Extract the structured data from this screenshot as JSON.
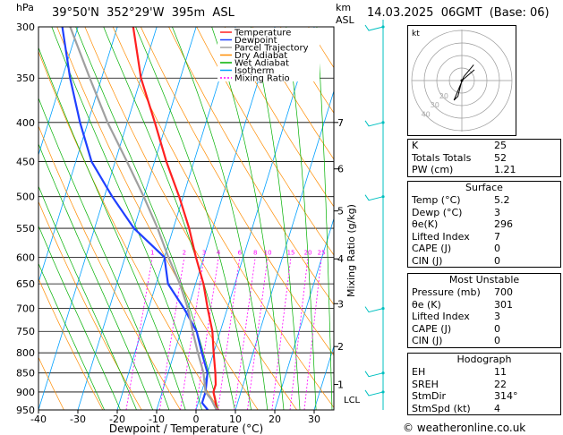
{
  "header": {
    "hpa_label": "hPa",
    "location": "39°50'N  352°29'W  395m  ASL",
    "km_label": "km",
    "asl_label": "ASL",
    "datetime": "14.03.2025  06GMT  (Base: 06)"
  },
  "legend": [
    {
      "label": "Temperature",
      "color": "#ff2020",
      "dash": ""
    },
    {
      "label": "Dewpoint",
      "color": "#2040ff",
      "dash": ""
    },
    {
      "label": "Parcel Trajectory",
      "color": "#a0a0a0",
      "dash": ""
    },
    {
      "label": "Dry Adiabat",
      "color": "#ff8c00",
      "dash": ""
    },
    {
      "label": "Wet Adiabat",
      "color": "#00b000",
      "dash": ""
    },
    {
      "label": "Isotherm",
      "color": "#00a0ff",
      "dash": ""
    },
    {
      "label": "Mixing Ratio",
      "color": "#ff00ff",
      "dash": "2,2"
    }
  ],
  "axes": {
    "xlabel": "Dewpoint / Temperature (°C)",
    "ylabel_right": "Mixing Ratio (g/kg)",
    "lcl_label": "LCL",
    "xticks": [
      "-40",
      "-30",
      "-20",
      "-10",
      "0",
      "10",
      "20",
      "30"
    ],
    "pressure_ticks": [
      "300",
      "350",
      "400",
      "450",
      "500",
      "550",
      "600",
      "650",
      "700",
      "750",
      "800",
      "850",
      "900",
      "950"
    ],
    "km_ticks": [
      {
        "label": "7",
        "p": 400
      },
      {
        "label": "6",
        "p": 460
      },
      {
        "label": "5",
        "p": 522
      },
      {
        "label": "4",
        "p": 603
      },
      {
        "label": "3",
        "p": 690
      },
      {
        "label": "2",
        "p": 785
      },
      {
        "label": "1",
        "p": 880
      }
    ],
    "mixing_ratio_labels": [
      "1",
      "2",
      "3",
      "4",
      "6",
      "8",
      "10",
      "15",
      "20",
      "25"
    ]
  },
  "chart_data": {
    "type": "line",
    "title": "",
    "xlim": [
      -40,
      35
    ],
    "plim": [
      300,
      950
    ],
    "skew_c_per_decade": 60,
    "series": [
      {
        "name": "Temperature",
        "color": "#ff2020",
        "points": [
          [
            5.2,
            950
          ],
          [
            4,
            920
          ],
          [
            3,
            900
          ],
          [
            3,
            880
          ],
          [
            2,
            850
          ],
          [
            0,
            800
          ],
          [
            -2,
            750
          ],
          [
            -5,
            700
          ],
          [
            -8,
            650
          ],
          [
            -12,
            600
          ],
          [
            -16,
            550
          ],
          [
            -21,
            500
          ],
          [
            -27,
            450
          ],
          [
            -33,
            400
          ],
          [
            -40,
            350
          ],
          [
            -46,
            300
          ]
        ]
      },
      {
        "name": "Dewpoint",
        "color": "#2040ff",
        "points": [
          [
            3,
            950
          ],
          [
            1,
            930
          ],
          [
            1,
            900
          ],
          [
            0,
            850
          ],
          [
            -3,
            800
          ],
          [
            -6,
            750
          ],
          [
            -11,
            700
          ],
          [
            -17,
            650
          ],
          [
            -20,
            600
          ],
          [
            -30,
            550
          ],
          [
            -38,
            500
          ],
          [
            -46,
            450
          ],
          [
            -52,
            400
          ],
          [
            -58,
            350
          ],
          [
            -64,
            300
          ]
        ]
      },
      {
        "name": "Parcel Trajectory",
        "color": "#a0a0a0",
        "points": [
          [
            5.2,
            950
          ],
          [
            3,
            920
          ],
          [
            1,
            900
          ],
          [
            -1,
            850
          ],
          [
            -4,
            800
          ],
          [
            -7,
            750
          ],
          [
            -10,
            700
          ],
          [
            -14,
            650
          ],
          [
            -19,
            600
          ],
          [
            -24,
            550
          ],
          [
            -30,
            500
          ],
          [
            -37,
            450
          ],
          [
            -45,
            400
          ],
          [
            -53,
            350
          ],
          [
            -62,
            300
          ]
        ]
      }
    ]
  },
  "hodograph": {
    "unit_label": "kt",
    "ring_labels": [
      "20",
      "30",
      "40"
    ],
    "points": [
      [
        0,
        0
      ],
      [
        -2,
        -8
      ],
      [
        -4,
        -10
      ],
      [
        1,
        2
      ],
      [
        6,
        8
      ]
    ]
  },
  "indices": {
    "rows": [
      {
        "label": "K",
        "value": "25"
      },
      {
        "label": "Totals Totals",
        "value": "52"
      },
      {
        "label": "PW (cm)",
        "value": "1.21"
      }
    ]
  },
  "surface": {
    "title": "Surface",
    "rows": [
      {
        "label": "Temp (°C)",
        "value": "5.2"
      },
      {
        "label": "Dewp (°C)",
        "value": "3"
      },
      {
        "label": "θe(K)",
        "value": "296"
      },
      {
        "label": "Lifted Index",
        "value": "7"
      },
      {
        "label": "CAPE (J)",
        "value": "0"
      },
      {
        "label": "CIN (J)",
        "value": "0"
      }
    ]
  },
  "most_unstable": {
    "title": "Most Unstable",
    "rows": [
      {
        "label": "Pressure (mb)",
        "value": "700"
      },
      {
        "label": "θe (K)",
        "value": "301"
      },
      {
        "label": "Lifted Index",
        "value": "3"
      },
      {
        "label": "CAPE (J)",
        "value": "0"
      },
      {
        "label": "CIN (J)",
        "value": "0"
      }
    ]
  },
  "hodograph_box": {
    "title": "Hodograph",
    "rows": [
      {
        "label": "EH",
        "value": "11"
      },
      {
        "label": "SREH",
        "value": "22"
      },
      {
        "label": "StmDir",
        "value": "314°"
      },
      {
        "label": "StmSpd (kt)",
        "value": "4"
      }
    ]
  },
  "footer": {
    "copyright": "© weatheronline.co.uk"
  },
  "colors": {
    "isotherm": "#00a0ff",
    "dry": "#ff8c00",
    "wet": "#00b000",
    "mixing": "#ff00ff",
    "wind": "#00c0c0"
  }
}
